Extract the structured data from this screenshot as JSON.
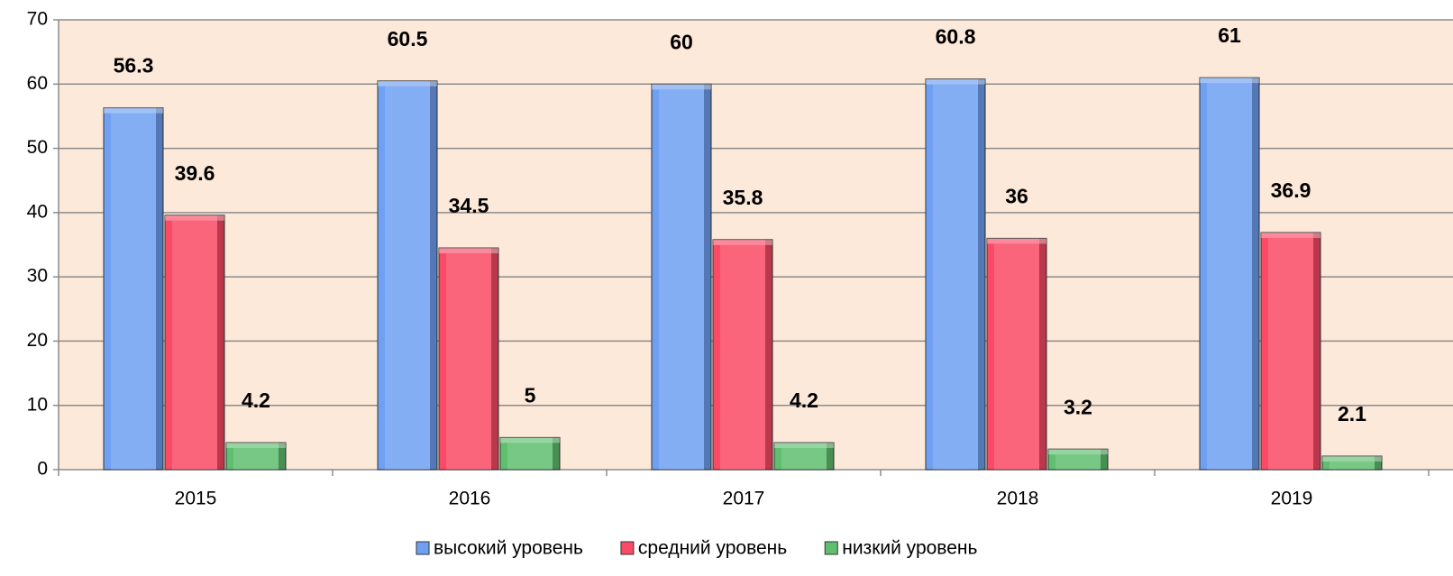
{
  "chart_data": {
    "type": "bar",
    "categories": [
      "2015",
      "2016",
      "2017",
      "2018",
      "2019"
    ],
    "series": [
      {
        "name": "высокий уровень",
        "color": "#6fa0f2",
        "values": [
          56.3,
          60.5,
          60,
          60.8,
          61
        ]
      },
      {
        "name": "средний уровень",
        "color": "#fa4a66",
        "values": [
          39.6,
          34.5,
          35.8,
          36,
          36.9
        ]
      },
      {
        "name": "низкий уровень",
        "color": "#5fbf6f",
        "values": [
          4.2,
          5,
          4.2,
          3.2,
          2.1
        ]
      }
    ],
    "ylim": [
      0,
      70
    ],
    "yticks": [
      0,
      10,
      20,
      30,
      40,
      50,
      60,
      70
    ],
    "grid": true,
    "legend": "bottom"
  }
}
